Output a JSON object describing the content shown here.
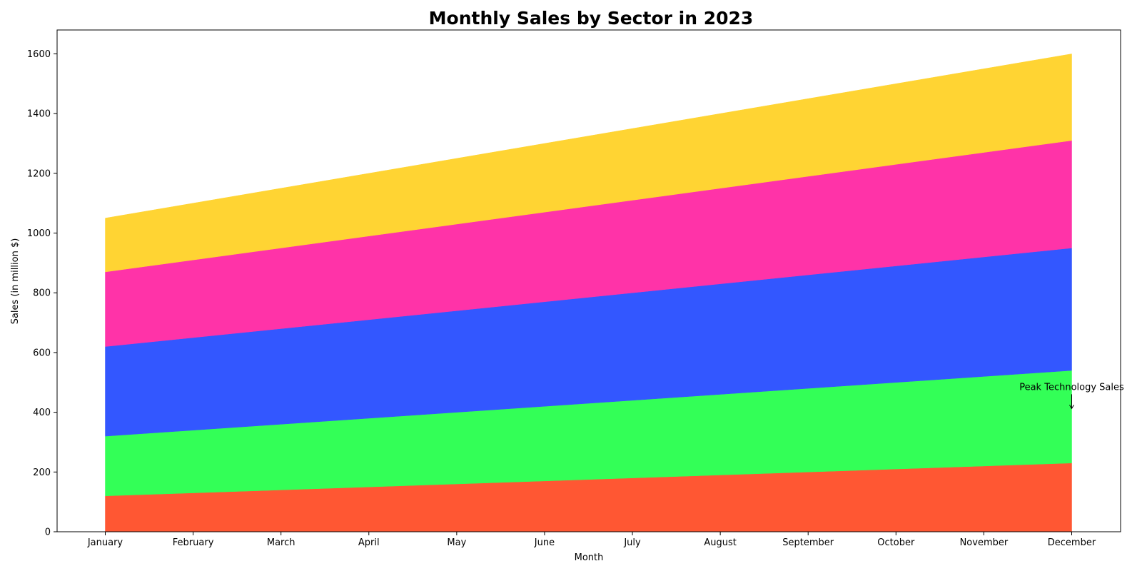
{
  "chart_data": {
    "type": "area",
    "stacked": true,
    "title": "Monthly Sales by Sector in 2023",
    "xlabel": "Month",
    "ylabel": "Sales (in million $)",
    "categories": [
      "January",
      "February",
      "March",
      "April",
      "May",
      "June",
      "July",
      "August",
      "September",
      "October",
      "November",
      "December"
    ],
    "ylim": [
      0,
      1680
    ],
    "yticks": [
      0,
      200,
      400,
      600,
      800,
      1000,
      1200,
      1400,
      1600
    ],
    "grid": false,
    "legend": "none",
    "series": [
      {
        "values": [
          120,
          130,
          140,
          150,
          160,
          170,
          180,
          190,
          200,
          210,
          220,
          230
        ],
        "color": "#FF5733"
      },
      {
        "values": [
          200,
          210,
          220,
          230,
          240,
          250,
          260,
          270,
          280,
          290,
          300,
          310
        ],
        "color": "#33FF57"
      },
      {
        "values": [
          300,
          310,
          320,
          330,
          340,
          350,
          360,
          370,
          380,
          390,
          400,
          410
        ],
        "color": "#3357FF"
      },
      {
        "values": [
          250,
          260,
          270,
          280,
          290,
          300,
          310,
          320,
          330,
          340,
          350,
          360
        ],
        "color": "#FF33A8"
      },
      {
        "values": [
          180,
          190,
          200,
          210,
          220,
          230,
          240,
          250,
          260,
          270,
          280,
          290
        ],
        "color": "#FFD433"
      }
    ],
    "annotations": [
      {
        "text": "Peak Technology Sales",
        "x": "December",
        "y": 410,
        "text_y": 470
      }
    ]
  }
}
